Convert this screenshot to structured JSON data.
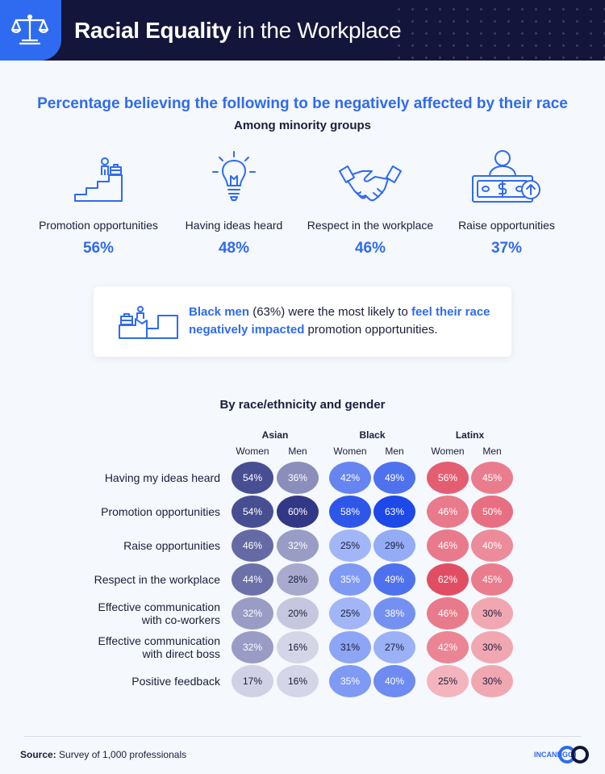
{
  "header": {
    "title_bold": "Racial Equality",
    "title_light": "in the Workplace"
  },
  "headline": "Percentage believing the following to be negatively affected by their race",
  "subheadline": "Among minority groups",
  "stats": [
    {
      "icon": "promotion-stairs-icon",
      "label": "Promotion opportunities",
      "value": "56%"
    },
    {
      "icon": "lightbulb-icon",
      "label": "Having ideas heard",
      "value": "48%"
    },
    {
      "icon": "handshake-icon",
      "label": "Respect in the workplace",
      "value": "46%"
    },
    {
      "icon": "money-raise-icon",
      "label": "Raise opportunities",
      "value": "37%"
    }
  ],
  "callout": {
    "icon": "stairs-obstacle-icon",
    "part1": "Black men",
    "part2": " (63%) were the most likely to ",
    "part3": "feel their race negatively impacted",
    "part4": " promotion opportunities."
  },
  "section_title": "By race/ethnicity and gender",
  "chart_data": {
    "type": "heatmap",
    "groups": [
      "Asian",
      "Black",
      "Latinx"
    ],
    "genders": [
      "Women",
      "Men"
    ],
    "rows": [
      "Having my ideas heard",
      "Promotion opportunities",
      "Raise opportunities",
      "Respect in the workplace",
      "Effective communication with co-workers",
      "Effective communication with direct boss",
      "Positive feedback"
    ],
    "series": [
      {
        "group": "Asian",
        "gender": "Women",
        "values": [
          54,
          54,
          46,
          44,
          32,
          32,
          17
        ]
      },
      {
        "group": "Asian",
        "gender": "Men",
        "values": [
          36,
          60,
          32,
          28,
          20,
          16,
          16
        ]
      },
      {
        "group": "Black",
        "gender": "Women",
        "values": [
          42,
          58,
          25,
          35,
          25,
          31,
          35
        ]
      },
      {
        "group": "Black",
        "gender": "Men",
        "values": [
          49,
          63,
          29,
          49,
          38,
          27,
          40
        ]
      },
      {
        "group": "Latinx",
        "gender": "Women",
        "values": [
          56,
          46,
          46,
          62,
          46,
          42,
          25
        ]
      },
      {
        "group": "Latinx",
        "gender": "Men",
        "values": [
          45,
          50,
          40,
          45,
          30,
          30,
          30
        ]
      }
    ],
    "unit": "%",
    "colors": {
      "Asian": {
        "low": "#dcdcec",
        "high": "#232a7c"
      },
      "Black": {
        "low": "#c8d6fb",
        "high": "#1946e8"
      },
      "Latinx": {
        "low": "#f9d3d8",
        "high": "#e0485f"
      }
    },
    "value_range": [
      14,
      64
    ]
  },
  "footer": {
    "source_label": "Source:",
    "source_text": " Survey of 1,000 professionals",
    "brand": "INCANDGO"
  }
}
